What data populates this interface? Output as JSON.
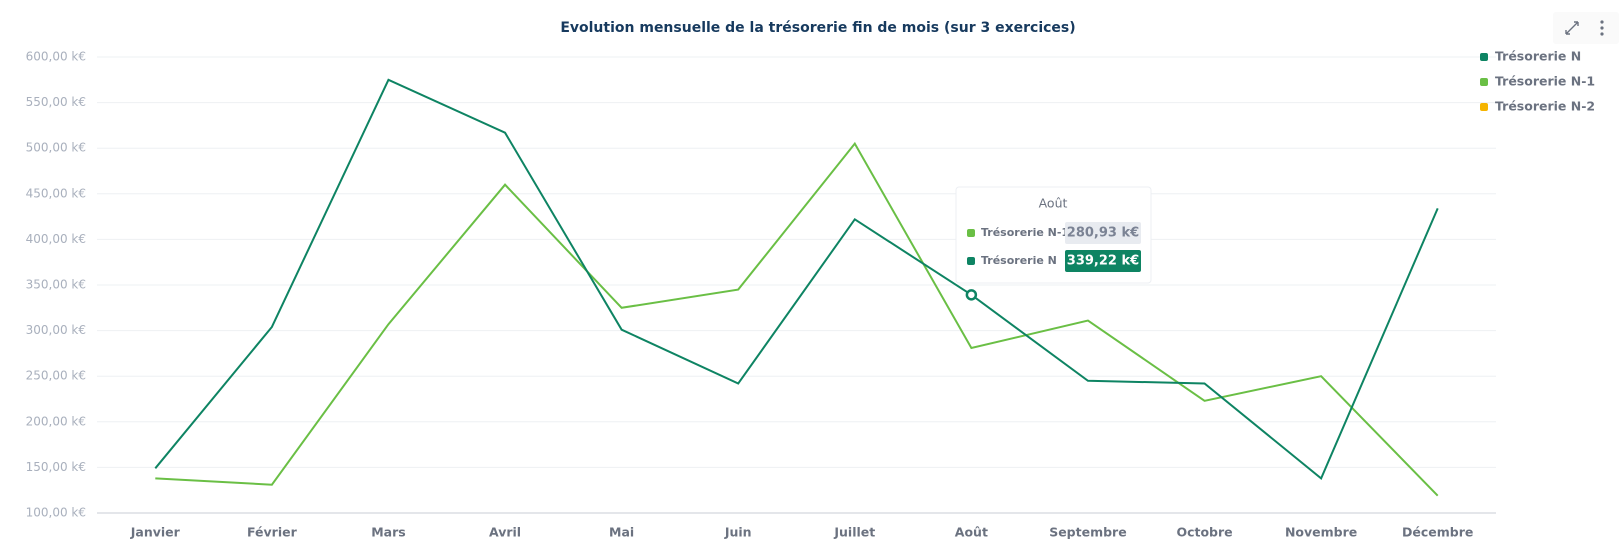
{
  "chart_data": {
    "type": "line",
    "title": "Evolution mensuelle de la trésorerie fin de mois (sur 3 exercices)",
    "categories": [
      "Janvier",
      "Février",
      "Mars",
      "Avril",
      "Mai",
      "Juin",
      "Juillet",
      "Août",
      "Septembre",
      "Octobre",
      "Novembre",
      "Décembre"
    ],
    "series": [
      {
        "name": "Trésorerie N",
        "color": "#0e8463",
        "values": [
          149,
          304,
          575,
          517,
          301,
          242,
          422,
          339.22,
          245,
          242,
          138,
          434
        ],
        "value_labels": [
          null,
          null,
          null,
          null,
          null,
          null,
          null,
          "339,22 k€",
          null,
          null,
          null,
          null
        ]
      },
      {
        "name": "Trésorerie N-1",
        "color": "#6abf45",
        "values": [
          138,
          131,
          307,
          460,
          325,
          345,
          505,
          280.93,
          311,
          223,
          250,
          119
        ],
        "value_labels": [
          null,
          null,
          null,
          null,
          null,
          null,
          null,
          "280,93 k€",
          null,
          null,
          null,
          null
        ]
      },
      {
        "name": "Trésorerie N-2",
        "color": "#f5b400",
        "values": [
          null,
          null,
          null,
          null,
          null,
          null,
          null,
          null,
          null,
          null,
          null,
          null
        ]
      }
    ],
    "ylim": [
      100,
      600
    ],
    "yticks": [
      {
        "value": 100,
        "label": "100,00 k€"
      },
      {
        "value": 150,
        "label": "150,00 k€"
      },
      {
        "value": 200,
        "label": "200,00 k€"
      },
      {
        "value": 250,
        "label": "250,00 k€"
      },
      {
        "value": 300,
        "label": "300,00 k€"
      },
      {
        "value": 350,
        "label": "350,00 k€"
      },
      {
        "value": 400,
        "label": "400,00 k€"
      },
      {
        "value": 450,
        "label": "450,00 k€"
      },
      {
        "value": 500,
        "label": "500,00 k€"
      },
      {
        "value": 550,
        "label": "550,00 k€"
      },
      {
        "value": 600,
        "label": "600,00 k€"
      }
    ],
    "grid": true,
    "legend": "top-right"
  }
}
